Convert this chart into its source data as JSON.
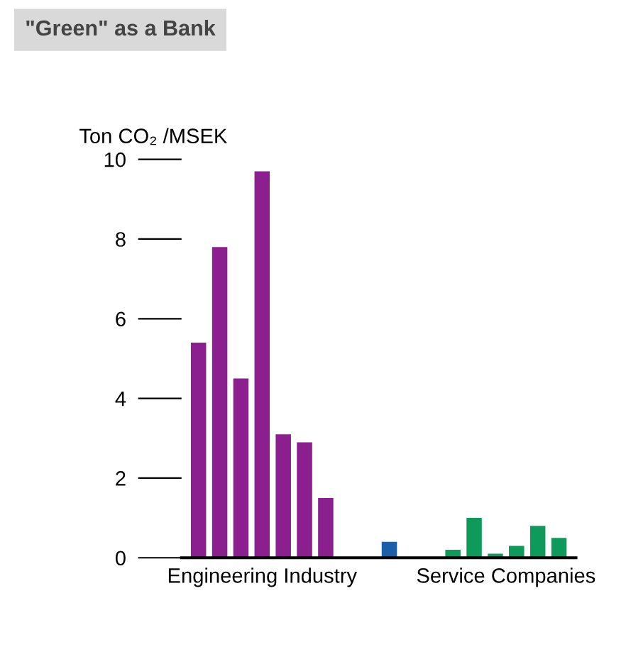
{
  "chart_data": {
    "type": "bar",
    "title": "\"Green\" as a Bank",
    "ylabel": "Ton CO₂ /MSEK",
    "categories": [
      null,
      null,
      null,
      null,
      null,
      null,
      null,
      null,
      null,
      null,
      null,
      null,
      null,
      null,
      null,
      null,
      null,
      null
    ],
    "series": [
      {
        "name": "Engineering Industry",
        "color": "#8b1f8f",
        "values": [
          5.4,
          7.8,
          4.5,
          9.7,
          3.1,
          2.9,
          1.5,
          null,
          null,
          null,
          null,
          null,
          null,
          null,
          null,
          null,
          null,
          null
        ]
      },
      {
        "color": "#1a5fa8",
        "values": [
          null,
          null,
          null,
          null,
          null,
          null,
          null,
          null,
          null,
          0.4,
          null,
          null,
          null,
          null,
          null,
          null,
          null,
          null
        ]
      },
      {
        "name": "Service Companies",
        "color": "#0e9a5a",
        "values": [
          null,
          null,
          null,
          null,
          null,
          null,
          null,
          null,
          null,
          null,
          null,
          null,
          0.2,
          1.0,
          0.1,
          0.3,
          0.8,
          0.5
        ]
      }
    ],
    "ylim": [
      0,
      10
    ],
    "yticks": [
      0,
      2,
      4,
      6,
      8,
      10
    ],
    "grid": false,
    "legend": false
  }
}
